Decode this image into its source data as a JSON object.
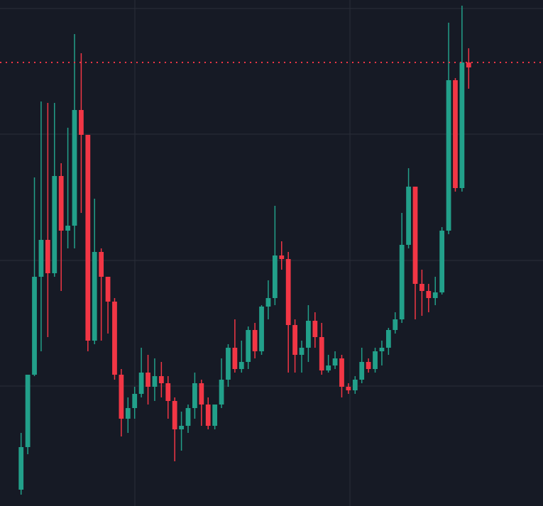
{
  "chart_data": {
    "type": "candlestick",
    "open": [
      23,
      83,
      185,
      323,
      375,
      328,
      465,
      388,
      395,
      558,
      523,
      233,
      358,
      323,
      288,
      185,
      123,
      138,
      158,
      188,
      168,
      183,
      173,
      148,
      108,
      113,
      138,
      173,
      143,
      113,
      143,
      178,
      223,
      193,
      203,
      248,
      218,
      281,
      293,
      353,
      348,
      255,
      213,
      223,
      261,
      238,
      191,
      198,
      208,
      168,
      163,
      178,
      203,
      193,
      218,
      223,
      248,
      263,
      368,
      450,
      313,
      303,
      293,
      301,
      388,
      600,
      448,
      625
    ],
    "high": [
      103,
      185,
      463,
      570,
      568,
      568,
      483,
      533,
      665,
      638,
      523,
      433,
      363,
      323,
      293,
      193,
      153,
      168,
      223,
      213,
      208,
      203,
      183,
      153,
      133,
      143,
      188,
      178,
      153,
      143,
      208,
      228,
      263,
      233,
      253,
      258,
      283,
      318,
      423,
      373,
      358,
      263,
      233,
      283,
      273,
      258,
      213,
      218,
      213,
      173,
      183,
      223,
      208,
      223,
      233,
      251,
      273,
      413,
      476,
      450,
      333,
      313,
      323,
      393,
      681,
      603,
      705,
      645
    ],
    "low": [
      16,
      73,
      183,
      218,
      238,
      323,
      303,
      363,
      363,
      413,
      218,
      228,
      233,
      243,
      178,
      98,
      103,
      123,
      153,
      143,
      148,
      153,
      123,
      63,
      78,
      103,
      123,
      113,
      108,
      108,
      138,
      168,
      188,
      188,
      193,
      208,
      213,
      263,
      283,
      333,
      188,
      188,
      188,
      203,
      223,
      185,
      188,
      193,
      153,
      158,
      158,
      173,
      188,
      188,
      198,
      213,
      243,
      258,
      363,
      263,
      268,
      273,
      283,
      298,
      383,
      443,
      443,
      588
    ],
    "close": [
      83,
      185,
      323,
      375,
      328,
      465,
      388,
      395,
      558,
      523,
      233,
      358,
      323,
      288,
      185,
      123,
      138,
      158,
      188,
      168,
      183,
      173,
      148,
      108,
      113,
      138,
      173,
      143,
      113,
      143,
      178,
      223,
      193,
      203,
      248,
      218,
      281,
      293,
      353,
      348,
      255,
      213,
      223,
      261,
      238,
      191,
      198,
      208,
      168,
      163,
      178,
      203,
      193,
      218,
      223,
      248,
      263,
      368,
      450,
      313,
      303,
      293,
      301,
      388,
      600,
      448,
      625,
      618
    ],
    "up_color": "#22a08a",
    "down_color": "#f23645",
    "ylim": [
      0,
      713
    ],
    "yticks": [
      169,
      346,
      524,
      701
    ],
    "grid": true,
    "price_line": 625,
    "price_line_color": "#f23645"
  }
}
